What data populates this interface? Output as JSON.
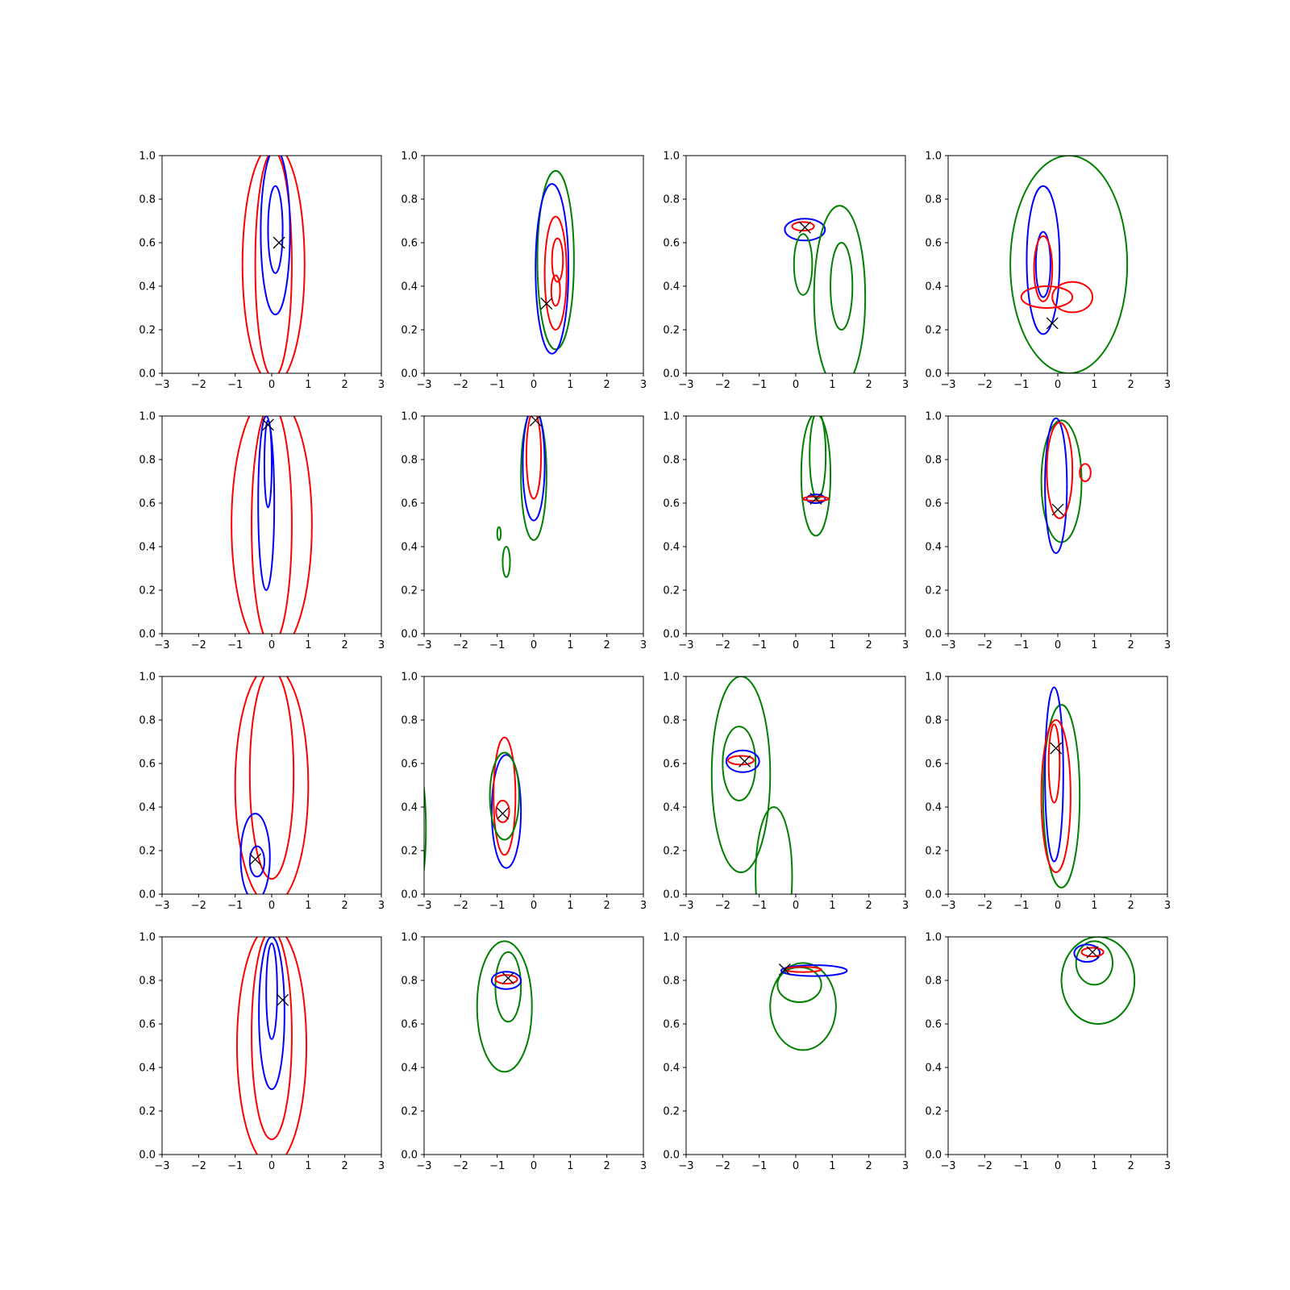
{
  "chart_data": {
    "type": "contour",
    "grid": {
      "rows": 4,
      "cols": 4
    },
    "xlim": [
      -3,
      3
    ],
    "ylim": [
      0,
      1
    ],
    "xticks": [
      -3,
      -2,
      -1,
      0,
      1,
      2,
      3
    ],
    "yticks": [
      0.0,
      0.2,
      0.4,
      0.6,
      0.8,
      1.0
    ],
    "xtick_labels": [
      "−3",
      "−2",
      "−1",
      "0",
      "1",
      "2",
      "3"
    ],
    "ytick_labels": [
      "0.0",
      "0.2",
      "0.4",
      "0.6",
      "0.8",
      "1.0"
    ],
    "series_colors": {
      "red": "#ff0000",
      "blue": "#0000ff",
      "green": "#008000"
    },
    "marker": {
      "symbol": "x",
      "color": "#000000"
    },
    "panels": [
      {
        "marker": [
          0.2,
          0.6
        ],
        "contours": [
          {
            "color": "red",
            "cx": 0.05,
            "cy": 0.5,
            "w": 0.85,
            "h": 0.55
          },
          {
            "color": "red",
            "cx": 0.05,
            "cy": 0.5,
            "w": 0.5,
            "h": 0.52
          },
          {
            "color": "blue",
            "cx": 0.1,
            "cy": 0.65,
            "w": 0.4,
            "h": 0.38
          },
          {
            "color": "blue",
            "cx": 0.1,
            "cy": 0.66,
            "w": 0.2,
            "h": 0.2
          }
        ]
      },
      {
        "marker": [
          0.35,
          0.32
        ],
        "contours": [
          {
            "color": "green",
            "cx": 0.6,
            "cy": 0.52,
            "w": 0.5,
            "h": 0.41
          },
          {
            "color": "blue",
            "cx": 0.5,
            "cy": 0.48,
            "w": 0.45,
            "h": 0.39
          },
          {
            "color": "red",
            "cx": 0.6,
            "cy": 0.46,
            "w": 0.3,
            "h": 0.26
          },
          {
            "color": "red",
            "cx": 0.65,
            "cy": 0.52,
            "w": 0.15,
            "h": 0.1
          },
          {
            "color": "red",
            "cx": 0.6,
            "cy": 0.38,
            "w": 0.12,
            "h": 0.07
          }
        ]
      },
      {
        "marker": [
          0.25,
          0.67
        ],
        "contours": [
          {
            "color": "blue",
            "cx": 0.25,
            "cy": 0.66,
            "w": 0.55,
            "h": 0.05
          },
          {
            "color": "red",
            "cx": 0.2,
            "cy": 0.675,
            "w": 0.3,
            "h": 0.02
          },
          {
            "color": "green",
            "cx": 0.2,
            "cy": 0.5,
            "w": 0.25,
            "h": 0.14
          },
          {
            "color": "green",
            "cx": 1.2,
            "cy": 0.35,
            "w": 0.7,
            "h": 0.42
          },
          {
            "color": "green",
            "cx": 1.25,
            "cy": 0.4,
            "w": 0.3,
            "h": 0.2
          }
        ]
      },
      {
        "marker": [
          -0.15,
          0.23
        ],
        "contours": [
          {
            "color": "green",
            "cx": 0.3,
            "cy": 0.5,
            "w": 1.6,
            "h": 0.5
          },
          {
            "color": "blue",
            "cx": -0.4,
            "cy": 0.52,
            "w": 0.45,
            "h": 0.34
          },
          {
            "color": "blue",
            "cx": -0.4,
            "cy": 0.5,
            "w": 0.2,
            "h": 0.15
          },
          {
            "color": "red",
            "cx": -0.4,
            "cy": 0.48,
            "w": 0.25,
            "h": 0.15
          },
          {
            "color": "red",
            "cx": -0.3,
            "cy": 0.35,
            "w": 0.7,
            "h": 0.05
          },
          {
            "color": "red",
            "cx": 0.4,
            "cy": 0.35,
            "w": 0.55,
            "h": 0.07
          }
        ]
      },
      {
        "marker": [
          -0.1,
          0.96
        ],
        "contours": [
          {
            "color": "red",
            "cx": 0.0,
            "cy": 0.5,
            "w": 1.1,
            "h": 0.6
          },
          {
            "color": "red",
            "cx": 0.0,
            "cy": 0.5,
            "w": 0.55,
            "h": 0.55
          },
          {
            "color": "blue",
            "cx": -0.15,
            "cy": 0.6,
            "w": 0.22,
            "h": 0.4
          },
          {
            "color": "blue",
            "cx": -0.1,
            "cy": 0.78,
            "w": 0.1,
            "h": 0.2
          }
        ]
      },
      {
        "marker": [
          0.05,
          0.98
        ],
        "contours": [
          {
            "color": "green",
            "cx": 0.0,
            "cy": 0.73,
            "w": 0.35,
            "h": 0.3
          },
          {
            "color": "blue",
            "cx": 0.0,
            "cy": 0.78,
            "w": 0.3,
            "h": 0.26
          },
          {
            "color": "red",
            "cx": 0.0,
            "cy": 0.82,
            "w": 0.2,
            "h": 0.2
          },
          {
            "color": "green",
            "cx": -0.95,
            "cy": 0.46,
            "w": 0.05,
            "h": 0.03
          },
          {
            "color": "green",
            "cx": -0.75,
            "cy": 0.33,
            "w": 0.1,
            "h": 0.07
          }
        ]
      },
      {
        "marker": [
          0.55,
          0.62
        ],
        "contours": [
          {
            "color": "green",
            "cx": 0.55,
            "cy": 0.73,
            "w": 0.4,
            "h": 0.28
          },
          {
            "color": "green",
            "cx": 0.6,
            "cy": 0.82,
            "w": 0.22,
            "h": 0.2
          },
          {
            "color": "blue",
            "cx": 0.55,
            "cy": 0.62,
            "w": 0.25,
            "h": 0.02
          },
          {
            "color": "red",
            "cx": 0.55,
            "cy": 0.62,
            "w": 0.35,
            "h": 0.01
          }
        ]
      },
      {
        "marker": [
          0.0,
          0.57
        ],
        "contours": [
          {
            "color": "green",
            "cx": 0.1,
            "cy": 0.7,
            "w": 0.55,
            "h": 0.28
          },
          {
            "color": "blue",
            "cx": -0.05,
            "cy": 0.68,
            "w": 0.3,
            "h": 0.31
          },
          {
            "color": "red",
            "cx": 0.05,
            "cy": 0.75,
            "w": 0.35,
            "h": 0.22
          },
          {
            "color": "red",
            "cx": 0.75,
            "cy": 0.74,
            "w": 0.15,
            "h": 0.04
          }
        ]
      },
      {
        "marker": [
          -0.45,
          0.16
        ],
        "contours": [
          {
            "color": "red",
            "cx": 0.0,
            "cy": 0.5,
            "w": 1.0,
            "h": 0.55
          },
          {
            "color": "red",
            "cx": 0.0,
            "cy": 0.55,
            "w": 0.6,
            "h": 0.48
          },
          {
            "color": "blue",
            "cx": -0.45,
            "cy": 0.17,
            "w": 0.4,
            "h": 0.2
          },
          {
            "color": "blue",
            "cx": -0.4,
            "cy": 0.15,
            "w": 0.2,
            "h": 0.07
          }
        ]
      },
      {
        "marker": [
          -0.85,
          0.37
        ],
        "contours": [
          {
            "color": "blue",
            "cx": -0.75,
            "cy": 0.38,
            "w": 0.4,
            "h": 0.26
          },
          {
            "color": "red",
            "cx": -0.8,
            "cy": 0.45,
            "w": 0.3,
            "h": 0.27
          },
          {
            "color": "red",
            "cx": -0.85,
            "cy": 0.38,
            "w": 0.18,
            "h": 0.05
          },
          {
            "color": "green",
            "cx": -0.8,
            "cy": 0.45,
            "w": 0.4,
            "h": 0.2
          },
          {
            "color": "green",
            "cx": -3.2,
            "cy": 0.3,
            "w": 0.25,
            "h": 0.3
          }
        ]
      },
      {
        "marker": [
          -1.4,
          0.61
        ],
        "contours": [
          {
            "color": "green",
            "cx": -1.5,
            "cy": 0.55,
            "w": 0.8,
            "h": 0.45
          },
          {
            "color": "green",
            "cx": -1.55,
            "cy": 0.6,
            "w": 0.45,
            "h": 0.17
          },
          {
            "color": "blue",
            "cx": -1.45,
            "cy": 0.61,
            "w": 0.45,
            "h": 0.05
          },
          {
            "color": "red",
            "cx": -1.5,
            "cy": 0.615,
            "w": 0.35,
            "h": 0.02
          },
          {
            "color": "green",
            "cx": -0.6,
            "cy": 0.08,
            "w": 0.5,
            "h": 0.32
          }
        ]
      },
      {
        "marker": [
          -0.05,
          0.67
        ],
        "contours": [
          {
            "color": "green",
            "cx": 0.1,
            "cy": 0.45,
            "w": 0.5,
            "h": 0.42
          },
          {
            "color": "blue",
            "cx": -0.1,
            "cy": 0.55,
            "w": 0.25,
            "h": 0.4
          },
          {
            "color": "red",
            "cx": -0.05,
            "cy": 0.45,
            "w": 0.4,
            "h": 0.35
          },
          {
            "color": "red",
            "cx": -0.1,
            "cy": 0.6,
            "w": 0.15,
            "h": 0.18
          }
        ]
      },
      {
        "marker": [
          0.3,
          0.71
        ],
        "contours": [
          {
            "color": "red",
            "cx": 0.0,
            "cy": 0.5,
            "w": 0.95,
            "h": 0.55
          },
          {
            "color": "red",
            "cx": 0.0,
            "cy": 0.55,
            "w": 0.55,
            "h": 0.48
          },
          {
            "color": "blue",
            "cx": 0.0,
            "cy": 0.65,
            "w": 0.35,
            "h": 0.35
          },
          {
            "color": "blue",
            "cx": 0.0,
            "cy": 0.75,
            "w": 0.15,
            "h": 0.22
          }
        ]
      },
      {
        "marker": [
          -0.7,
          0.81
        ],
        "contours": [
          {
            "color": "green",
            "cx": -0.8,
            "cy": 0.68,
            "w": 0.75,
            "h": 0.3
          },
          {
            "color": "green",
            "cx": -0.7,
            "cy": 0.77,
            "w": 0.35,
            "h": 0.16
          },
          {
            "color": "blue",
            "cx": -0.75,
            "cy": 0.8,
            "w": 0.4,
            "h": 0.04
          },
          {
            "color": "red",
            "cx": -0.75,
            "cy": 0.805,
            "w": 0.3,
            "h": 0.02
          }
        ]
      },
      {
        "marker": [
          -0.3,
          0.85
        ],
        "contours": [
          {
            "color": "green",
            "cx": 0.2,
            "cy": 0.68,
            "w": 0.9,
            "h": 0.2
          },
          {
            "color": "green",
            "cx": 0.1,
            "cy": 0.78,
            "w": 0.6,
            "h": 0.08
          },
          {
            "color": "blue",
            "cx": 0.5,
            "cy": 0.845,
            "w": 0.9,
            "h": 0.025
          },
          {
            "color": "red",
            "cx": 0.2,
            "cy": 0.85,
            "w": 0.5,
            "h": 0.012
          }
        ]
      },
      {
        "marker": [
          0.95,
          0.93
        ],
        "contours": [
          {
            "color": "green",
            "cx": 1.1,
            "cy": 0.8,
            "w": 1.0,
            "h": 0.2
          },
          {
            "color": "green",
            "cx": 1.0,
            "cy": 0.88,
            "w": 0.5,
            "h": 0.1
          },
          {
            "color": "blue",
            "cx": 0.8,
            "cy": 0.925,
            "w": 0.35,
            "h": 0.04
          },
          {
            "color": "red",
            "cx": 0.95,
            "cy": 0.93,
            "w": 0.3,
            "h": 0.02
          }
        ]
      }
    ]
  }
}
